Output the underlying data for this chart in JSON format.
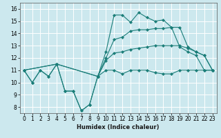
{
  "title": "",
  "xlabel": "Humidex (Indice chaleur)",
  "xlim": [
    -0.5,
    23.5
  ],
  "ylim": [
    7.5,
    16.5
  ],
  "xticks": [
    0,
    1,
    2,
    3,
    4,
    5,
    6,
    7,
    8,
    9,
    10,
    11,
    12,
    13,
    14,
    15,
    16,
    17,
    18,
    19,
    20,
    21,
    22,
    23
  ],
  "yticks": [
    8,
    9,
    10,
    11,
    12,
    13,
    14,
    15,
    16
  ],
  "bg_color": "#cce8ee",
  "grid_color": "#ffffff",
  "line_color": "#1a7d78",
  "lines": [
    {
      "x": [
        0,
        1,
        2,
        3,
        4,
        5,
        6,
        7,
        8,
        9,
        10,
        11,
        12,
        13,
        14,
        15,
        16,
        17,
        18,
        19,
        20,
        21,
        22,
        23
      ],
      "y": [
        11.0,
        10.0,
        11.0,
        10.5,
        11.5,
        9.3,
        9.3,
        7.7,
        8.2,
        10.5,
        11.0,
        11.0,
        10.7,
        11.0,
        11.0,
        11.0,
        10.8,
        10.7,
        10.7,
        11.0,
        11.0,
        11.0,
        11.0,
        11.0
      ]
    },
    {
      "x": [
        0,
        1,
        2,
        3,
        4,
        5,
        6,
        7,
        8,
        9,
        10,
        11,
        12,
        13,
        14,
        15,
        16,
        17,
        18,
        19,
        20,
        21,
        22,
        23
      ],
      "y": [
        11.0,
        10.0,
        11.0,
        10.5,
        11.5,
        9.3,
        9.3,
        7.7,
        8.2,
        10.5,
        12.5,
        15.5,
        15.5,
        14.9,
        15.7,
        15.3,
        15.0,
        15.1,
        14.5,
        12.9,
        12.5,
        12.2,
        11.0,
        11.0
      ]
    },
    {
      "x": [
        0,
        4,
        9,
        10,
        11,
        12,
        13,
        14,
        15,
        16,
        17,
        18,
        19,
        20,
        21,
        22,
        23
      ],
      "y": [
        11.0,
        11.5,
        10.5,
        12.0,
        13.5,
        13.7,
        14.2,
        14.3,
        14.3,
        14.4,
        14.4,
        14.5,
        14.5,
        12.9,
        12.5,
        12.2,
        11.0
      ]
    },
    {
      "x": [
        0,
        4,
        9,
        10,
        11,
        12,
        13,
        14,
        15,
        16,
        17,
        18,
        19,
        20,
        21,
        22,
        23
      ],
      "y": [
        11.0,
        11.5,
        10.5,
        11.8,
        12.4,
        12.5,
        12.7,
        12.8,
        12.9,
        13.0,
        13.0,
        13.0,
        13.0,
        12.8,
        12.5,
        12.2,
        11.0
      ]
    }
  ]
}
